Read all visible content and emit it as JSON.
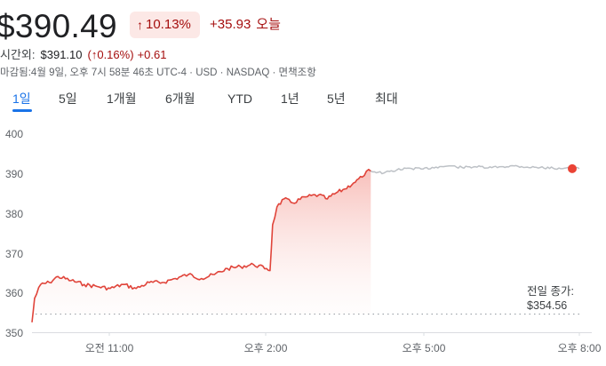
{
  "quote": {
    "price": "$390.49",
    "pct_change": "10.13%",
    "abs_change": "+35.93",
    "today_label": "오늘"
  },
  "after_hours": {
    "label": "시간외:",
    "price": "$391.10",
    "pct_open": "(",
    "pct": "0.16%)",
    "abs": "+0.61"
  },
  "meta": "마감됨:4월 9일, 오후 7시 58분 46초 UTC-4 · USD · NASDAQ · 면책조항",
  "tabs": [
    "1일",
    "5일",
    "1개월",
    "6개월",
    "YTD",
    "1년",
    "5년",
    "최대"
  ],
  "active_tab": "1일",
  "prev_close": {
    "label": "전일 종가:",
    "value": "$354.56"
  },
  "colors": {
    "down_red": "#a50e0e",
    "line_red": "#e0443a",
    "after_hours_gray": "#bdc1c6",
    "accent_blue": "#1a73e8"
  },
  "chart_data": {
    "type": "line",
    "y_ticks": [
      "400",
      "390",
      "380",
      "370",
      "360",
      "350"
    ],
    "x_ticks": [
      "오전 11:00",
      "오후 2:00",
      "오후 5:00",
      "오후 8:00"
    ],
    "ylim": [
      350,
      400
    ],
    "series": [
      {
        "values": [
          [
            "9:30",
            352.5
          ],
          [
            "9:33",
            358.5
          ],
          [
            "9:40",
            362.0
          ],
          [
            "9:50",
            362.5
          ],
          [
            "10:00",
            364.0
          ],
          [
            "10:15",
            363.0
          ],
          [
            "10:30",
            362.0
          ],
          [
            "10:45",
            361.5
          ],
          [
            "11:00",
            361.0
          ],
          [
            "11:15",
            362.0
          ],
          [
            "11:30",
            361.0
          ],
          [
            "11:45",
            362.5
          ],
          [
            "12:00",
            362.5
          ],
          [
            "12:15",
            363.5
          ],
          [
            "12:30",
            364.5
          ],
          [
            "12:45",
            363.5
          ],
          [
            "13:00",
            364.5
          ],
          [
            "13:15",
            366.0
          ],
          [
            "13:30",
            366.5
          ],
          [
            "13:45",
            367.0
          ],
          [
            "14:00",
            366.0
          ],
          [
            "14:04",
            365.5
          ],
          [
            "14:07",
            377.0
          ],
          [
            "14:12",
            381.5
          ],
          [
            "14:20",
            383.5
          ],
          [
            "14:30",
            382.5
          ],
          [
            "14:45",
            384.0
          ],
          [
            "15:00",
            384.5
          ],
          [
            "15:10",
            383.5
          ],
          [
            "15:20",
            385.0
          ],
          [
            "15:30",
            386.0
          ],
          [
            "15:40",
            387.5
          ],
          [
            "15:50",
            389.0
          ],
          [
            "15:55",
            390.5
          ],
          [
            "16:00",
            390.5
          ]
        ]
      },
      {
        "values": [
          [
            "16:00",
            390.5
          ],
          [
            "16:15",
            390.0
          ],
          [
            "16:30",
            390.8
          ],
          [
            "16:45",
            391.2
          ],
          [
            "17:00",
            391.0
          ],
          [
            "17:15",
            391.5
          ],
          [
            "17:30",
            391.8
          ],
          [
            "17:45",
            391.4
          ],
          [
            "18:00",
            391.6
          ],
          [
            "18:15",
            391.3
          ],
          [
            "18:30",
            391.6
          ],
          [
            "18:45",
            391.8
          ],
          [
            "19:00",
            391.5
          ],
          [
            "19:15",
            391.4
          ],
          [
            "19:30",
            391.2
          ],
          [
            "19:45",
            391.3
          ],
          [
            "20:00",
            391.1
          ]
        ]
      }
    ],
    "prev_close_value": 354.56,
    "grid": false
  }
}
